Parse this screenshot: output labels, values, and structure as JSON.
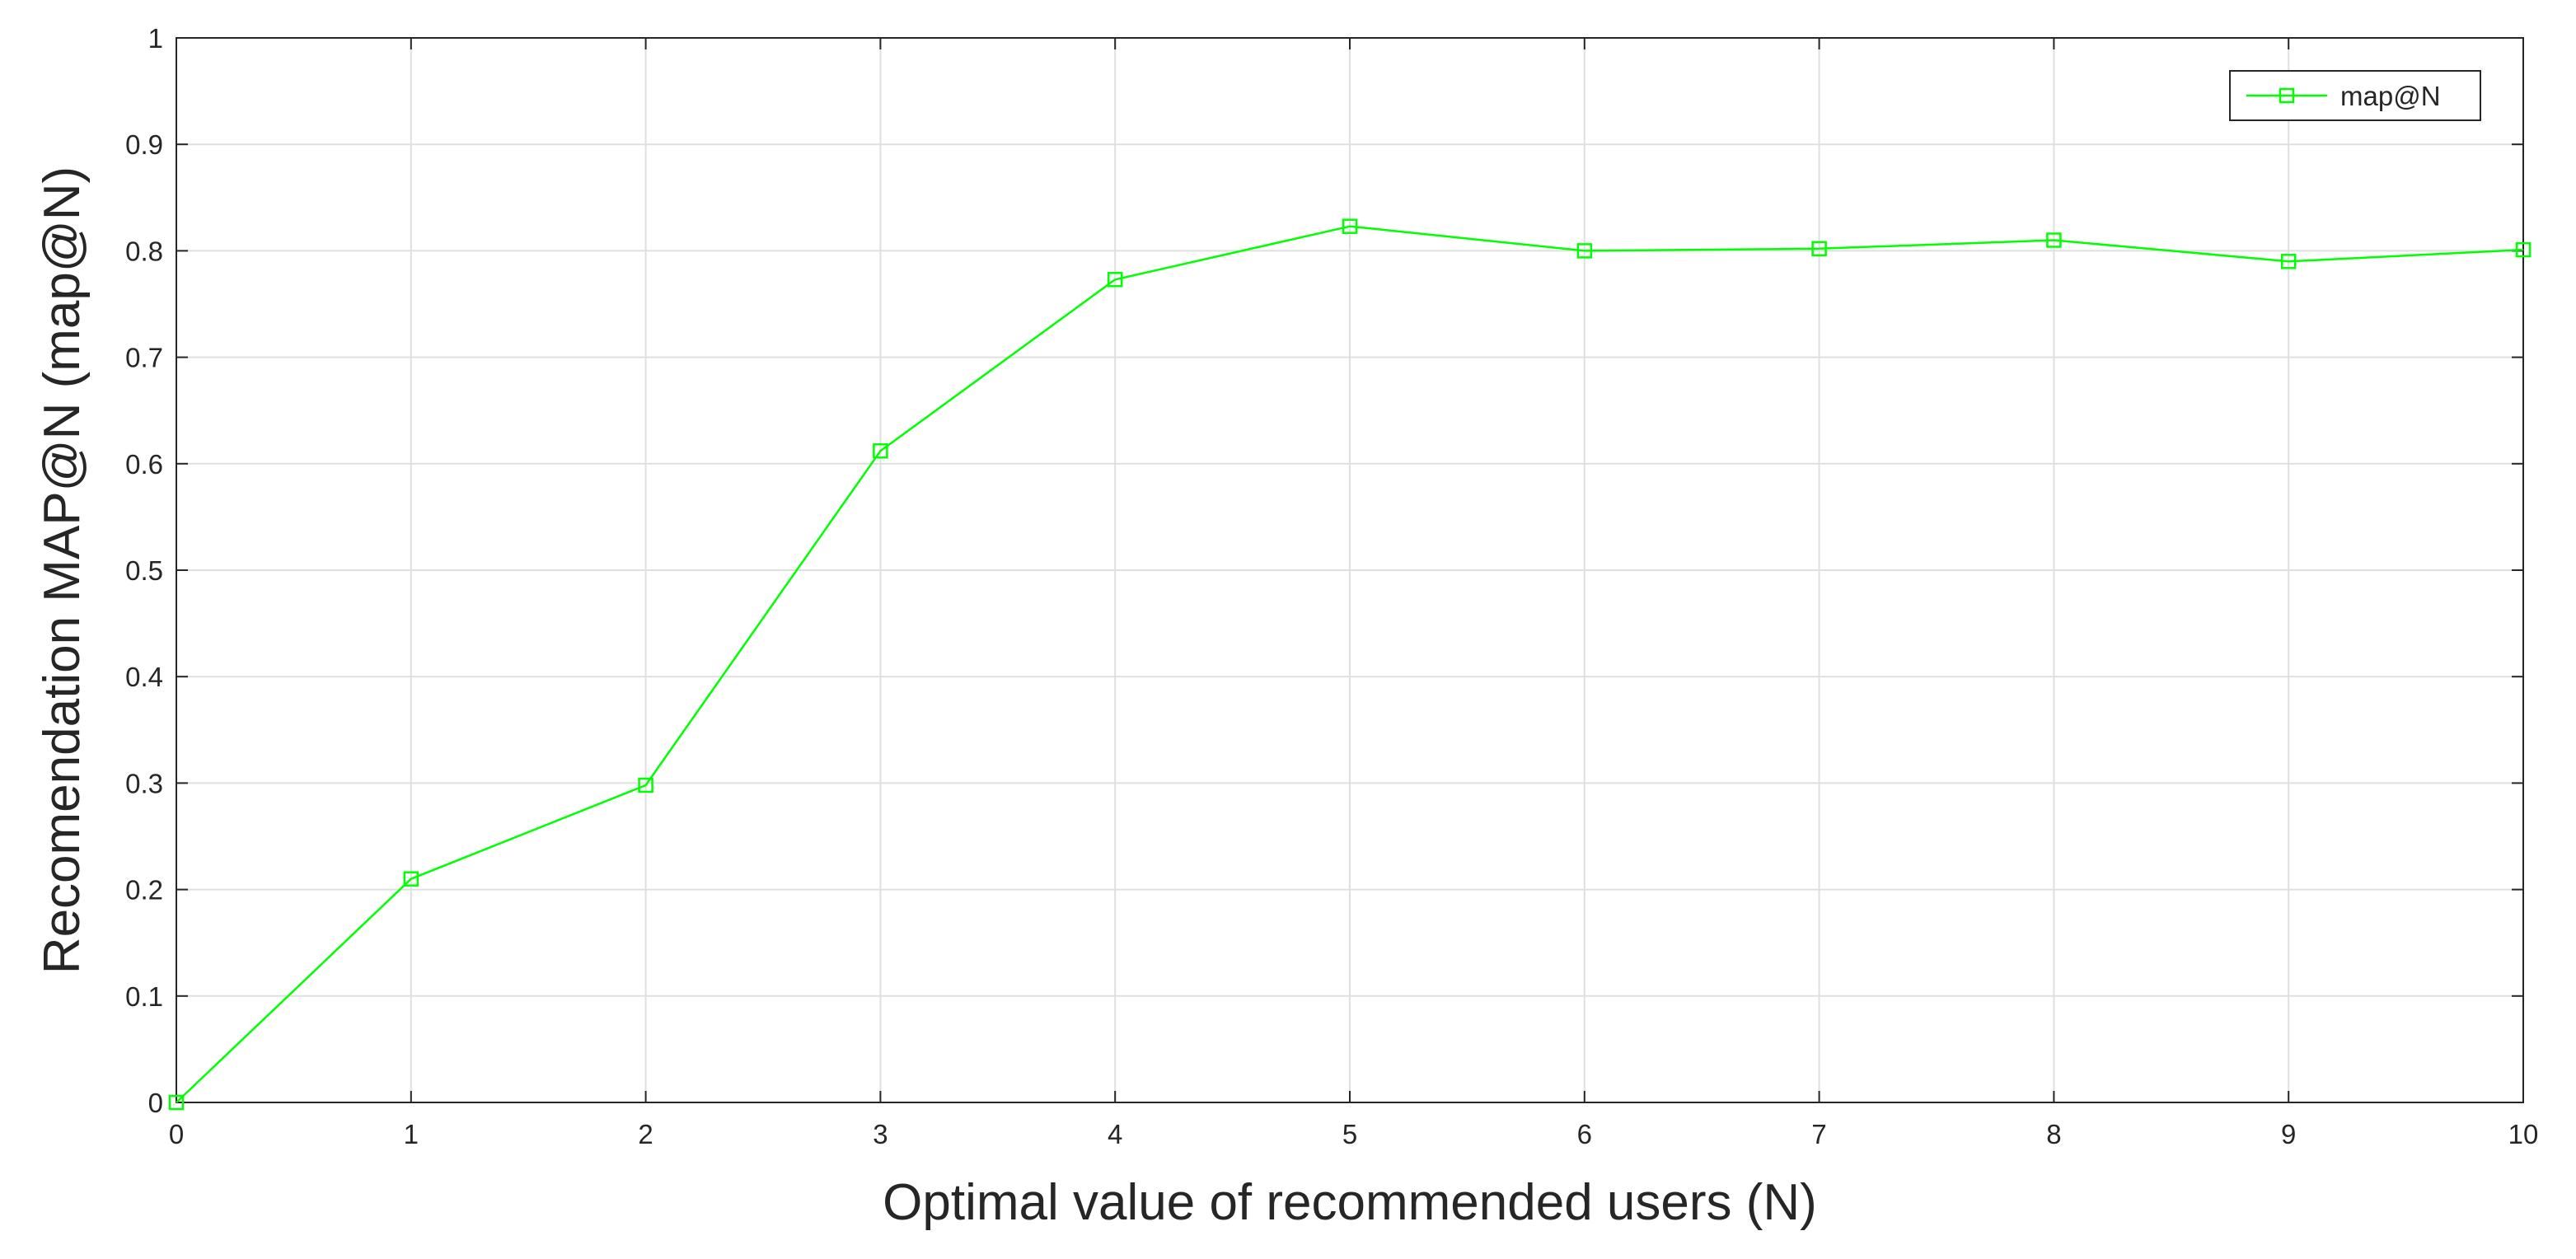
{
  "chart_data": {
    "type": "line",
    "xlabel": "Optimal value of recommended users (N)",
    "ylabel": "Recomendation MAP@N (map@N)",
    "xlim": [
      0,
      10
    ],
    "ylim": [
      0,
      1
    ],
    "x_ticks": [
      0,
      1,
      2,
      3,
      4,
      5,
      6,
      7,
      8,
      9,
      10
    ],
    "y_ticks": [
      0,
      0.1,
      0.2,
      0.3,
      0.4,
      0.5,
      0.6,
      0.7,
      0.8,
      0.9,
      1
    ],
    "x_tick_labels": [
      "0",
      "1",
      "2",
      "3",
      "4",
      "5",
      "6",
      "7",
      "8",
      "9",
      "10"
    ],
    "y_tick_labels": [
      "0",
      "0.1",
      "0.2",
      "0.3",
      "0.4",
      "0.5",
      "0.6",
      "0.7",
      "0.8",
      "0.9",
      "1"
    ],
    "grid": true,
    "legend_position": "top-right",
    "series": [
      {
        "name": "map@N",
        "color": "#00ff00",
        "marker": "square",
        "x": [
          0,
          1,
          2,
          3,
          4,
          5,
          6,
          7,
          8,
          9,
          10
        ],
        "y": [
          0.0,
          0.21,
          0.298,
          0.612,
          0.773,
          0.823,
          0.8,
          0.802,
          0.81,
          0.79,
          0.801
        ]
      }
    ]
  }
}
